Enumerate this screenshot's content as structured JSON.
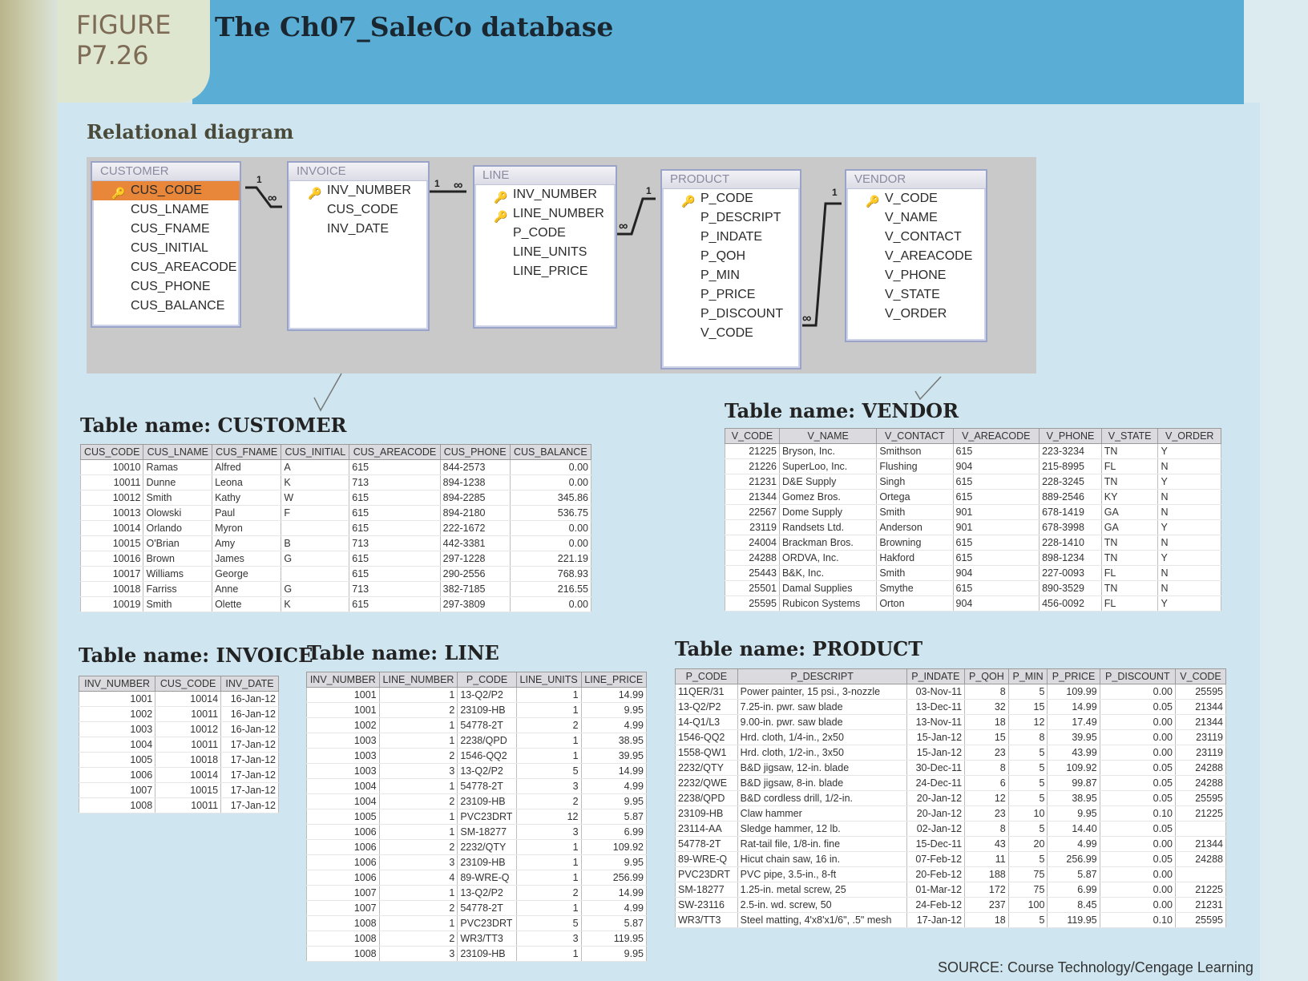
{
  "figure": {
    "label_line1": "FIGURE",
    "label_line2": "P7.26",
    "title": "The Ch07_SaleCo database"
  },
  "diagram": {
    "title": "Relational diagram",
    "entities": [
      {
        "name": "CUSTOMER",
        "fields": [
          "CUS_CODE",
          "CUS_LNAME",
          "CUS_FNAME",
          "CUS_INITIAL",
          "CUS_AREACODE",
          "CUS_PHONE",
          "CUS_BALANCE"
        ]
      },
      {
        "name": "INVOICE",
        "fields": [
          "INV_NUMBER",
          "CUS_CODE",
          "INV_DATE"
        ]
      },
      {
        "name": "LINE",
        "fields": [
          "INV_NUMBER",
          "LINE_NUMBER",
          "P_CODE",
          "LINE_UNITS",
          "LINE_PRICE"
        ]
      },
      {
        "name": "PRODUCT",
        "fields": [
          "P_CODE",
          "P_DESCRIPT",
          "P_INDATE",
          "P_QOH",
          "P_MIN",
          "P_PRICE",
          "P_DISCOUNT",
          "V_CODE"
        ]
      },
      {
        "name": "VENDOR",
        "fields": [
          "V_CODE",
          "V_NAME",
          "V_CONTACT",
          "V_AREACODE",
          "V_PHONE",
          "V_STATE",
          "V_ORDER"
        ]
      }
    ],
    "one": "1",
    "many": "∞"
  },
  "customer": {
    "title": "Table name: CUSTOMER",
    "columns": [
      "CUS_CODE",
      "CUS_LNAME",
      "CUS_FNAME",
      "CUS_INITIAL",
      "CUS_AREACODE",
      "CUS_PHONE",
      "CUS_BALANCE"
    ],
    "rows": [
      [
        "10010",
        "Ramas",
        "Alfred",
        "A",
        "615",
        "844-2573",
        "0.00"
      ],
      [
        "10011",
        "Dunne",
        "Leona",
        "K",
        "713",
        "894-1238",
        "0.00"
      ],
      [
        "10012",
        "Smith",
        "Kathy",
        "W",
        "615",
        "894-2285",
        "345.86"
      ],
      [
        "10013",
        "Olowski",
        "Paul",
        "F",
        "615",
        "894-2180",
        "536.75"
      ],
      [
        "10014",
        "Orlando",
        "Myron",
        "",
        "615",
        "222-1672",
        "0.00"
      ],
      [
        "10015",
        "O'Brian",
        "Amy",
        "B",
        "713",
        "442-3381",
        "0.00"
      ],
      [
        "10016",
        "Brown",
        "James",
        "G",
        "615",
        "297-1228",
        "221.19"
      ],
      [
        "10017",
        "Williams",
        "George",
        "",
        "615",
        "290-2556",
        "768.93"
      ],
      [
        "10018",
        "Farriss",
        "Anne",
        "G",
        "713",
        "382-7185",
        "216.55"
      ],
      [
        "10019",
        "Smith",
        "Olette",
        "K",
        "615",
        "297-3809",
        "0.00"
      ]
    ]
  },
  "vendor": {
    "title": "Table name: VENDOR",
    "columns": [
      "V_CODE",
      "V_NAME",
      "V_CONTACT",
      "V_AREACODE",
      "V_PHONE",
      "V_STATE",
      "V_ORDER"
    ],
    "rows": [
      [
        "21225",
        "Bryson, Inc.",
        "Smithson",
        "615",
        "223-3234",
        "TN",
        "Y"
      ],
      [
        "21226",
        "SuperLoo, Inc.",
        "Flushing",
        "904",
        "215-8995",
        "FL",
        "N"
      ],
      [
        "21231",
        "D&E Supply",
        "Singh",
        "615",
        "228-3245",
        "TN",
        "Y"
      ],
      [
        "21344",
        "Gomez Bros.",
        "Ortega",
        "615",
        "889-2546",
        "KY",
        "N"
      ],
      [
        "22567",
        "Dome Supply",
        "Smith",
        "901",
        "678-1419",
        "GA",
        "N"
      ],
      [
        "23119",
        "Randsets Ltd.",
        "Anderson",
        "901",
        "678-3998",
        "GA",
        "Y"
      ],
      [
        "24004",
        "Brackman Bros.",
        "Browning",
        "615",
        "228-1410",
        "TN",
        "N"
      ],
      [
        "24288",
        "ORDVA, Inc.",
        "Hakford",
        "615",
        "898-1234",
        "TN",
        "Y"
      ],
      [
        "25443",
        "B&K, Inc.",
        "Smith",
        "904",
        "227-0093",
        "FL",
        "N"
      ],
      [
        "25501",
        "Damal Supplies",
        "Smythe",
        "615",
        "890-3529",
        "TN",
        "N"
      ],
      [
        "25595",
        "Rubicon Systems",
        "Orton",
        "904",
        "456-0092",
        "FL",
        "Y"
      ]
    ]
  },
  "invoice": {
    "title": "Table name: INVOICE",
    "columns": [
      "INV_NUMBER",
      "CUS_CODE",
      "INV_DATE"
    ],
    "rows": [
      [
        "1001",
        "10014",
        "16-Jan-12"
      ],
      [
        "1002",
        "10011",
        "16-Jan-12"
      ],
      [
        "1003",
        "10012",
        "16-Jan-12"
      ],
      [
        "1004",
        "10011",
        "17-Jan-12"
      ],
      [
        "1005",
        "10018",
        "17-Jan-12"
      ],
      [
        "1006",
        "10014",
        "17-Jan-12"
      ],
      [
        "1007",
        "10015",
        "17-Jan-12"
      ],
      [
        "1008",
        "10011",
        "17-Jan-12"
      ]
    ]
  },
  "line": {
    "title": "Table name: LINE",
    "columns": [
      "INV_NUMBER",
      "LINE_NUMBER",
      "P_CODE",
      "LINE_UNITS",
      "LINE_PRICE"
    ],
    "rows": [
      [
        "1001",
        "1",
        "13-Q2/P2",
        "1",
        "14.99"
      ],
      [
        "1001",
        "2",
        "23109-HB",
        "1",
        "9.95"
      ],
      [
        "1002",
        "1",
        "54778-2T",
        "2",
        "4.99"
      ],
      [
        "1003",
        "1",
        "2238/QPD",
        "1",
        "38.95"
      ],
      [
        "1003",
        "2",
        "1546-QQ2",
        "1",
        "39.95"
      ],
      [
        "1003",
        "3",
        "13-Q2/P2",
        "5",
        "14.99"
      ],
      [
        "1004",
        "1",
        "54778-2T",
        "3",
        "4.99"
      ],
      [
        "1004",
        "2",
        "23109-HB",
        "2",
        "9.95"
      ],
      [
        "1005",
        "1",
        "PVC23DRT",
        "12",
        "5.87"
      ],
      [
        "1006",
        "1",
        "SM-18277",
        "3",
        "6.99"
      ],
      [
        "1006",
        "2",
        "2232/QTY",
        "1",
        "109.92"
      ],
      [
        "1006",
        "3",
        "23109-HB",
        "1",
        "9.95"
      ],
      [
        "1006",
        "4",
        "89-WRE-Q",
        "1",
        "256.99"
      ],
      [
        "1007",
        "1",
        "13-Q2/P2",
        "2",
        "14.99"
      ],
      [
        "1007",
        "2",
        "54778-2T",
        "1",
        "4.99"
      ],
      [
        "1008",
        "1",
        "PVC23DRT",
        "5",
        "5.87"
      ],
      [
        "1008",
        "2",
        "WR3/TT3",
        "3",
        "119.95"
      ],
      [
        "1008",
        "3",
        "23109-HB",
        "1",
        "9.95"
      ]
    ]
  },
  "product": {
    "title": "Table name: PRODUCT",
    "columns": [
      "P_CODE",
      "P_DESCRIPT",
      "P_INDATE",
      "P_QOH",
      "P_MIN",
      "P_PRICE",
      "P_DISCOUNT",
      "V_CODE"
    ],
    "rows": [
      [
        "11QER/31",
        "Power painter, 15 psi., 3-nozzle",
        "03-Nov-11",
        "8",
        "5",
        "109.99",
        "0.00",
        "25595"
      ],
      [
        "13-Q2/P2",
        "7.25-in. pwr. saw blade",
        "13-Dec-11",
        "32",
        "15",
        "14.99",
        "0.05",
        "21344"
      ],
      [
        "14-Q1/L3",
        "9.00-in. pwr. saw blade",
        "13-Nov-11",
        "18",
        "12",
        "17.49",
        "0.00",
        "21344"
      ],
      [
        "1546-QQ2",
        "Hrd. cloth, 1/4-in., 2x50",
        "15-Jan-12",
        "15",
        "8",
        "39.95",
        "0.00",
        "23119"
      ],
      [
        "1558-QW1",
        "Hrd. cloth, 1/2-in., 3x50",
        "15-Jan-12",
        "23",
        "5",
        "43.99",
        "0.00",
        "23119"
      ],
      [
        "2232/QTY",
        "B&D jigsaw, 12-in. blade",
        "30-Dec-11",
        "8",
        "5",
        "109.92",
        "0.05",
        "24288"
      ],
      [
        "2232/QWE",
        "B&D jigsaw, 8-in. blade",
        "24-Dec-11",
        "6",
        "5",
        "99.87",
        "0.05",
        "24288"
      ],
      [
        "2238/QPD",
        "B&D cordless drill, 1/2-in.",
        "20-Jan-12",
        "12",
        "5",
        "38.95",
        "0.05",
        "25595"
      ],
      [
        "23109-HB",
        "Claw hammer",
        "20-Jan-12",
        "23",
        "10",
        "9.95",
        "0.10",
        "21225"
      ],
      [
        "23114-AA",
        "Sledge hammer, 12 lb.",
        "02-Jan-12",
        "8",
        "5",
        "14.40",
        "0.05",
        ""
      ],
      [
        "54778-2T",
        "Rat-tail file, 1/8-in. fine",
        "15-Dec-11",
        "43",
        "20",
        "4.99",
        "0.00",
        "21344"
      ],
      [
        "89-WRE-Q",
        "Hicut chain saw, 16 in.",
        "07-Feb-12",
        "11",
        "5",
        "256.99",
        "0.05",
        "24288"
      ],
      [
        "PVC23DRT",
        "PVC pipe, 3.5-in., 8-ft",
        "20-Feb-12",
        "188",
        "75",
        "5.87",
        "0.00",
        ""
      ],
      [
        "SM-18277",
        "1.25-in. metal screw, 25",
        "01-Mar-12",
        "172",
        "75",
        "6.99",
        "0.00",
        "21225"
      ],
      [
        "SW-23116",
        "2.5-in. wd. screw, 50",
        "24-Feb-12",
        "237",
        "100",
        "8.45",
        "0.00",
        "21231"
      ],
      [
        "WR3/TT3",
        "Steel matting, 4'x8'x1/6\", .5\" mesh",
        "17-Jan-12",
        "18",
        "5",
        "119.95",
        "0.10",
        "25595"
      ]
    ]
  },
  "source": "SOURCE: Course Technology/Cengage Learning"
}
